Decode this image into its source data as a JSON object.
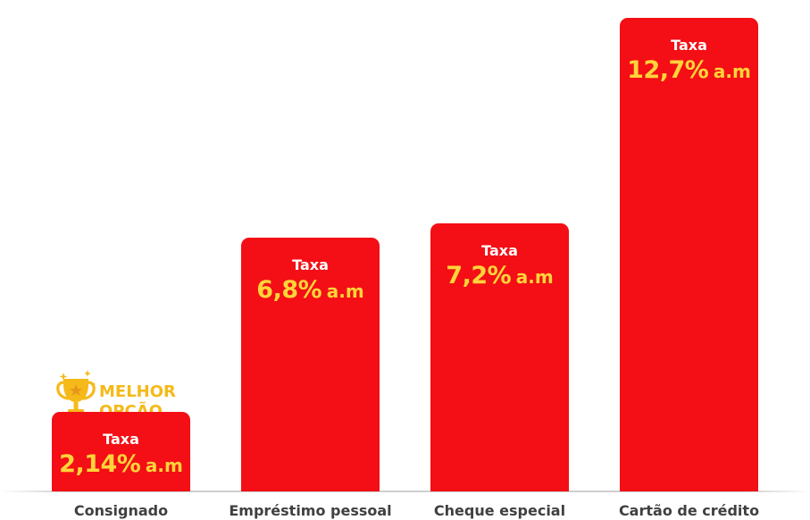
{
  "chart_data": {
    "type": "bar",
    "categories": [
      "Consignado",
      "Empréstimo pessoal",
      "Cheque especial",
      "Cartão de crédito"
    ],
    "values": [
      2.14,
      6.8,
      7.2,
      12.7
    ],
    "value_prefix": "Taxa",
    "value_labels": [
      "2,14%",
      "6,8%",
      "7,2%",
      "12,7%"
    ],
    "value_unit": "a.m",
    "ylim": [
      0,
      13.18
    ],
    "grid": false,
    "highlight": {
      "category_index": 0,
      "badge_lines": [
        "MELHOR",
        "OPÇÃO"
      ],
      "icon": "trophy-icon"
    },
    "colors": {
      "bar": "#f30f15",
      "value_text": "#ffd43a",
      "prefix_text": "#ffffff",
      "badge": "#f5b919",
      "category_text": "#404040"
    }
  }
}
